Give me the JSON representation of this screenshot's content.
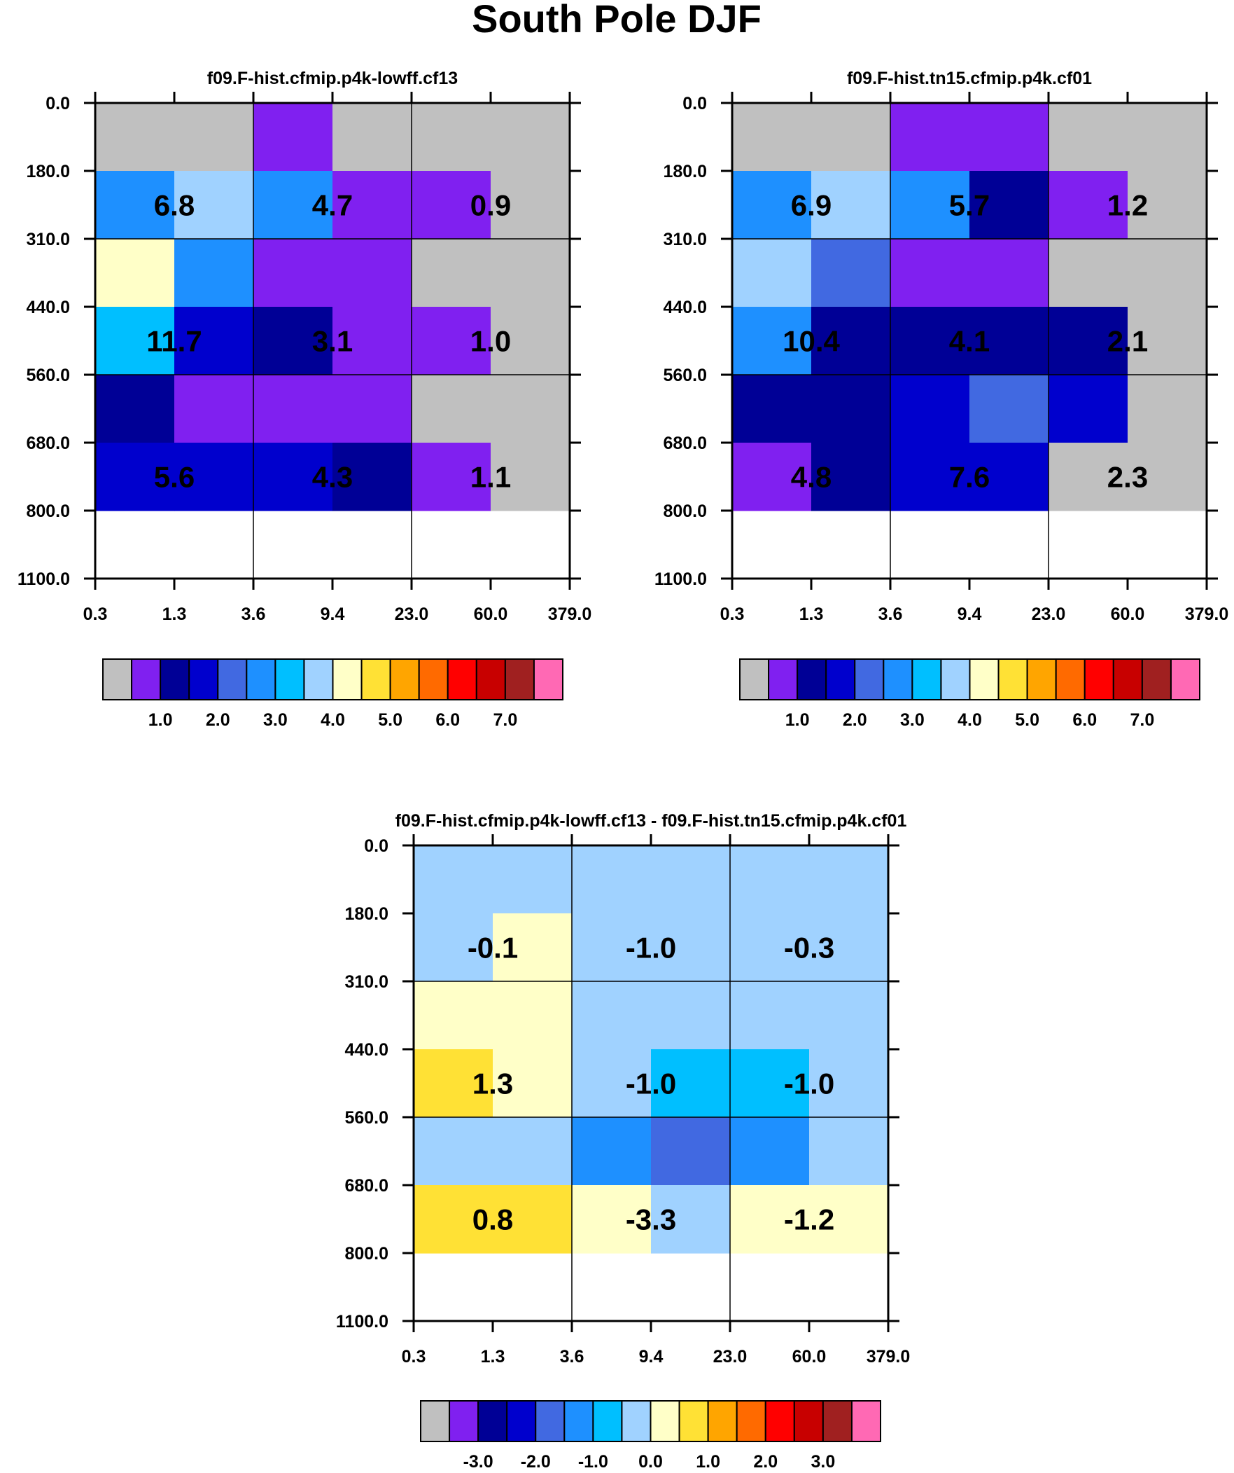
{
  "title": "South Pole DJF",
  "chart_data": [
    {
      "type": "heatmap",
      "title": "f09.F-hist.cfmip.p4k-lowff.cf13",
      "x_ticks": [
        "0.3",
        "1.3",
        "3.6",
        "9.4",
        "23.0",
        "60.0",
        "379.0"
      ],
      "y_ticks": [
        "0.0",
        "180.0",
        "310.0",
        "440.0",
        "560.0",
        "680.0",
        "800.0",
        "1100.0"
      ],
      "cells_level_index": [
        [
          0,
          0,
          1,
          0,
          0,
          0
        ],
        [
          5,
          7,
          5,
          1,
          1,
          0
        ],
        [
          8,
          5,
          1,
          1,
          0,
          0
        ],
        [
          6,
          3,
          2,
          1,
          1,
          0
        ],
        [
          2,
          1,
          1,
          1,
          0,
          0
        ],
        [
          3,
          3,
          3,
          2,
          1,
          0
        ]
      ],
      "block_labels": [
        [
          "6.8",
          "4.7",
          "0.9"
        ],
        [
          "11.7",
          "3.1",
          "1.0"
        ],
        [
          "5.6",
          "4.3",
          "1.1"
        ]
      ],
      "colorbar": {
        "colors": [
          "#c0c0c0",
          "#8020f0",
          "#000096",
          "#0000cd",
          "#4169e1",
          "#1e90ff",
          "#00bfff",
          "#a0d2ff",
          "#ffffc8",
          "#ffe135",
          "#ffa500",
          "#ff6a00",
          "#ff0000",
          "#c80000",
          "#a02020",
          "#ff69b4"
        ],
        "labels": [
          "1.0",
          "2.0",
          "3.0",
          "4.0",
          "5.0",
          "6.0",
          "7.0"
        ],
        "first_label_boundary": 2
      }
    },
    {
      "type": "heatmap",
      "title": "f09.F-hist.tn15.cfmip.p4k.cf01",
      "x_ticks": [
        "0.3",
        "1.3",
        "3.6",
        "9.4",
        "23.0",
        "60.0",
        "379.0"
      ],
      "y_ticks": [
        "0.0",
        "180.0",
        "310.0",
        "440.0",
        "560.0",
        "680.0",
        "800.0",
        "1100.0"
      ],
      "cells_level_index": [
        [
          0,
          0,
          1,
          1,
          0,
          0
        ],
        [
          5,
          7,
          5,
          2,
          1,
          0
        ],
        [
          7,
          4,
          1,
          1,
          0,
          0
        ],
        [
          5,
          2,
          2,
          2,
          2,
          0
        ],
        [
          2,
          2,
          3,
          4,
          3,
          0
        ],
        [
          1,
          2,
          3,
          3,
          0,
          0
        ]
      ],
      "block_labels": [
        [
          "6.9",
          "5.7",
          "1.2"
        ],
        [
          "10.4",
          "4.1",
          "2.1"
        ],
        [
          "4.8",
          "7.6",
          "2.3"
        ]
      ],
      "colorbar": {
        "colors": [
          "#c0c0c0",
          "#8020f0",
          "#000096",
          "#0000cd",
          "#4169e1",
          "#1e90ff",
          "#00bfff",
          "#a0d2ff",
          "#ffffc8",
          "#ffe135",
          "#ffa500",
          "#ff6a00",
          "#ff0000",
          "#c80000",
          "#a02020",
          "#ff69b4"
        ],
        "labels": [
          "1.0",
          "2.0",
          "3.0",
          "4.0",
          "5.0",
          "6.0",
          "7.0"
        ],
        "first_label_boundary": 2
      }
    },
    {
      "type": "heatmap",
      "title": "f09.F-hist.cfmip.p4k-lowff.cf13 - f09.F-hist.tn15.cfmip.p4k.cf01",
      "x_ticks": [
        "0.3",
        "1.3",
        "3.6",
        "9.4",
        "23.0",
        "60.0",
        "379.0"
      ],
      "y_ticks": [
        "0.0",
        "180.0",
        "310.0",
        "440.0",
        "560.0",
        "680.0",
        "800.0",
        "1100.0"
      ],
      "cells_level_index": [
        [
          7,
          7,
          7,
          7,
          7,
          7
        ],
        [
          7,
          8,
          7,
          7,
          7,
          7
        ],
        [
          8,
          8,
          7,
          7,
          7,
          7
        ],
        [
          9,
          8,
          7,
          6,
          6,
          7
        ],
        [
          7,
          7,
          5,
          4,
          5,
          7
        ],
        [
          9,
          9,
          8,
          7,
          8,
          8
        ]
      ],
      "block_labels": [
        [
          "-0.1",
          "-1.0",
          "-0.3"
        ],
        [
          "1.3",
          "-1.0",
          "-1.0"
        ],
        [
          "0.8",
          "-3.3",
          "-1.2"
        ]
      ],
      "colorbar": {
        "colors": [
          "#c0c0c0",
          "#8020f0",
          "#000096",
          "#0000cd",
          "#4169e1",
          "#1e90ff",
          "#00bfff",
          "#a0d2ff",
          "#ffffc8",
          "#ffe135",
          "#ffa500",
          "#ff6a00",
          "#ff0000",
          "#c80000",
          "#a02020",
          "#ff69b4"
        ],
        "labels": [
          "-3.0",
          "-2.0",
          "-1.0",
          "0.0",
          "1.0",
          "2.0",
          "3.0"
        ],
        "first_label_boundary": 2
      }
    }
  ]
}
